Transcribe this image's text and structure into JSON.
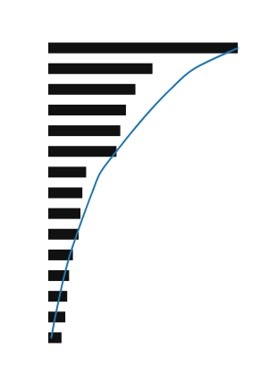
{
  "chart_data": {
    "type": "bar",
    "orientation": "horizontal",
    "grid": false,
    "tick_labels": false,
    "categories": [
      null,
      null,
      null,
      null,
      null,
      null,
      null,
      null,
      null,
      null,
      null,
      null,
      null,
      null,
      null
    ],
    "xlim": [
      0,
      1.08
    ],
    "series": [
      {
        "type": "bar",
        "color": "#111111",
        "values": [
          1.0,
          0.55,
          0.46,
          0.41,
          0.38,
          0.36,
          0.2,
          0.18,
          0.17,
          0.16,
          0.13,
          0.11,
          0.1,
          0.09,
          0.07
        ]
      },
      {
        "type": "line",
        "color": "#2176ae",
        "values": [
          1.0,
          0.77116704805492,
          0.6453089244851259,
          0.540045766590389,
          0.4462242562929062,
          0.3592677345537757,
          0.2768878718535469,
          0.2311212814645309,
          0.18993135011441648,
          0.15102974828375287,
          0.11441647597254005,
          0.08466819221967964,
          0.05949656750572082,
          0.036613272311212815,
          0.016018306636155607
        ]
      }
    ]
  }
}
